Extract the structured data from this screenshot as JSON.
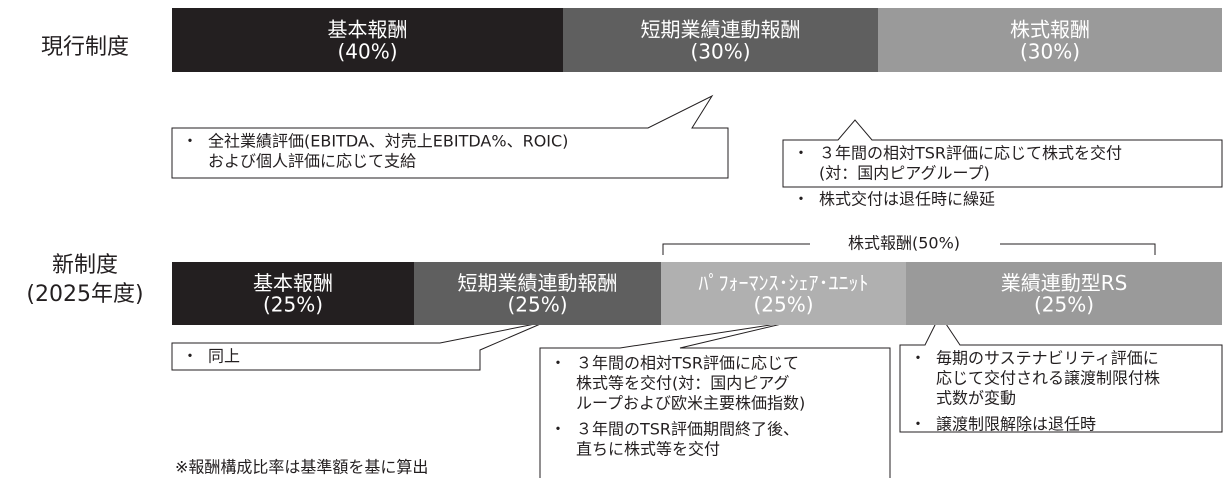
{
  "bullet": "・",
  "rows": [
    {
      "label": [
        "現行制度"
      ],
      "segments": [
        {
          "name": "基本報酬",
          "pct": "(40%)"
        },
        {
          "name": "短期業績連動報酬",
          "pct": "(30%)"
        },
        {
          "name": "株式報酬",
          "pct": "(30%)"
        }
      ],
      "callouts": [
        {
          "items": [
            [
              "全社業績評価(EBITDA、対売上EBITDA%、ROIC)",
              "および個人評価に応じて支給"
            ]
          ]
        },
        {
          "items": [
            [
              "３年間の相対TSR評価に応じて株式を交付",
              "(対：国内ピアグループ)"
            ],
            [
              "株式交付は退任時に繰延"
            ]
          ]
        }
      ]
    },
    {
      "label": [
        "新制度",
        "(2025年度)"
      ],
      "group": "株式報酬(50%)",
      "segments": [
        {
          "name": "基本報酬",
          "pct": "(25%)"
        },
        {
          "name": "短期業績連動報酬",
          "pct": "(25%)"
        },
        {
          "name": "ﾊﾟﾌｫｰﾏﾝｽ･ｼｪｱ･ﾕﾆｯﾄ",
          "pct": "(25%)"
        },
        {
          "name": "業績連動型RS",
          "pct": "(25%)"
        }
      ],
      "callouts": [
        {
          "items": [
            [
              "同上"
            ]
          ]
        },
        {
          "items": [
            [
              "３年間の相対TSR評価に応じて",
              "株式等を交付(対：国内ピアグ",
              "ループおよび欧米主要株価指数)"
            ],
            [
              "３年間のTSR評価期間終了後、",
              "直ちに株式等を交付"
            ]
          ]
        },
        {
          "items": [
            [
              "毎期のサステナビリティ評価に",
              "応じて交付される譲渡制限付株",
              "式数が変動"
            ],
            [
              "譲渡制限解除は退任時"
            ]
          ]
        }
      ]
    }
  ],
  "note": "※報酬構成比率は基準額を基に算出"
}
